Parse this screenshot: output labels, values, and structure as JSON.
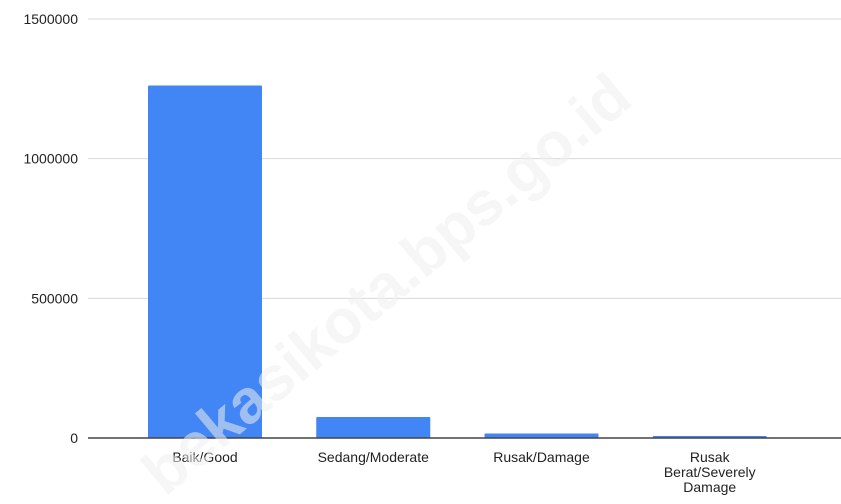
{
  "watermark": "bekasikota.bps.go.id",
  "colors": {
    "bar": "#4285f4",
    "gridline": "#dadada",
    "axis": "#444444",
    "text": "#222222",
    "watermark": "#eeeeee"
  },
  "chart_data": {
    "type": "bar",
    "categories": [
      "Baik/Good",
      "Sedang/Moderate",
      "Rusak/Damage",
      "Rusak Berat/Severely Damage"
    ],
    "category_lines": [
      [
        "Baik/Good"
      ],
      [
        "Sedang/Moderate"
      ],
      [
        "Rusak/Damage"
      ],
      [
        "Rusak",
        "Berat/Severely",
        "Damage"
      ]
    ],
    "values": [
      1262000,
      75000,
      16000,
      7000
    ],
    "ylim": [
      0,
      1500000
    ],
    "yticks": [
      0,
      500000,
      1000000,
      1500000
    ],
    "ytick_labels": [
      "0",
      "500000",
      "1000000",
      "1500000"
    ],
    "grid": true,
    "legend": "none"
  }
}
